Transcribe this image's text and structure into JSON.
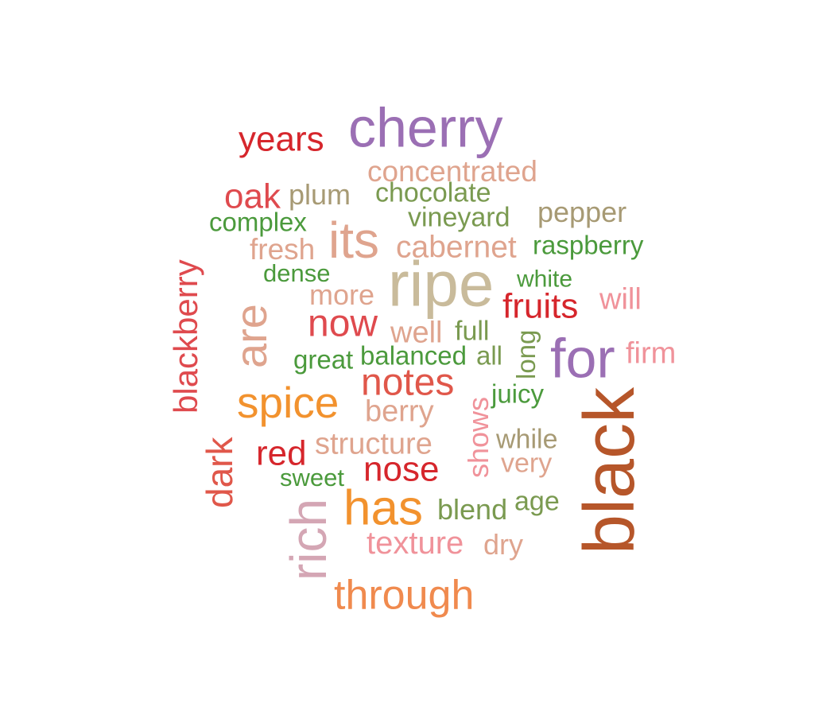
{
  "cloud": {
    "words": [
      {
        "text": "cherry",
        "color": "#9b6fb4"
      },
      {
        "text": "years",
        "color": "#d6262c"
      },
      {
        "text": "concentrated",
        "color": "#dfa48e"
      },
      {
        "text": "oak",
        "color": "#df4a4e"
      },
      {
        "text": "plum",
        "color": "#a79a74"
      },
      {
        "text": "chocolate",
        "color": "#7a9a50"
      },
      {
        "text": "complex",
        "color": "#4b9a3c"
      },
      {
        "text": "vineyard",
        "color": "#7a9a50"
      },
      {
        "text": "pepper",
        "color": "#a79a74"
      },
      {
        "text": "its",
        "color": "#dfa48e"
      },
      {
        "text": "fresh",
        "color": "#dfa48e"
      },
      {
        "text": "cabernet",
        "color": "#dfa48e"
      },
      {
        "text": "raspberry",
        "color": "#4b9a3c"
      },
      {
        "text": "dense",
        "color": "#4b9a3c"
      },
      {
        "text": "ripe",
        "color": "#c9bb9b"
      },
      {
        "text": "white",
        "color": "#4b9a3c"
      },
      {
        "text": "more",
        "color": "#dfa48e"
      },
      {
        "text": "will",
        "color": "#f0929a"
      },
      {
        "text": "fruits",
        "color": "#d6262c"
      },
      {
        "text": "blackberry",
        "color": "#df4a4e"
      },
      {
        "text": "are",
        "color": "#dfa48e"
      },
      {
        "text": "now",
        "color": "#df4a4e"
      },
      {
        "text": "well",
        "color": "#dfa48e"
      },
      {
        "text": "full",
        "color": "#7a9a50"
      },
      {
        "text": "firm",
        "color": "#f0929a"
      },
      {
        "text": "long",
        "color": "#7a9a50"
      },
      {
        "text": "for",
        "color": "#9b6fb4"
      },
      {
        "text": "great",
        "color": "#4b9a3c"
      },
      {
        "text": "balanced",
        "color": "#4b9a3c"
      },
      {
        "text": "all",
        "color": "#7a9a50"
      },
      {
        "text": "notes",
        "color": "#e0574a"
      },
      {
        "text": "juicy",
        "color": "#4b9a3c"
      },
      {
        "text": "spice",
        "color": "#f2922e"
      },
      {
        "text": "berry",
        "color": "#dfa48e"
      },
      {
        "text": "shows",
        "color": "#f0929a"
      },
      {
        "text": "black",
        "color": "#b6562a"
      },
      {
        "text": "structure",
        "color": "#dfa48e"
      },
      {
        "text": "while",
        "color": "#a79a74"
      },
      {
        "text": "dark",
        "color": "#e0574a"
      },
      {
        "text": "red",
        "color": "#d6262c"
      },
      {
        "text": "very",
        "color": "#dfa48e"
      },
      {
        "text": "nose",
        "color": "#d6262c"
      },
      {
        "text": "sweet",
        "color": "#4b9a3c"
      },
      {
        "text": "has",
        "color": "#f2922e"
      },
      {
        "text": "blend",
        "color": "#7a9a50"
      },
      {
        "text": "age",
        "color": "#7a9a50"
      },
      {
        "text": "rich",
        "color": "#d4a6b4"
      },
      {
        "text": "texture",
        "color": "#f0929a"
      },
      {
        "text": "dry",
        "color": "#dfa48e"
      },
      {
        "text": "through",
        "color": "#f08a4e"
      }
    ]
  }
}
